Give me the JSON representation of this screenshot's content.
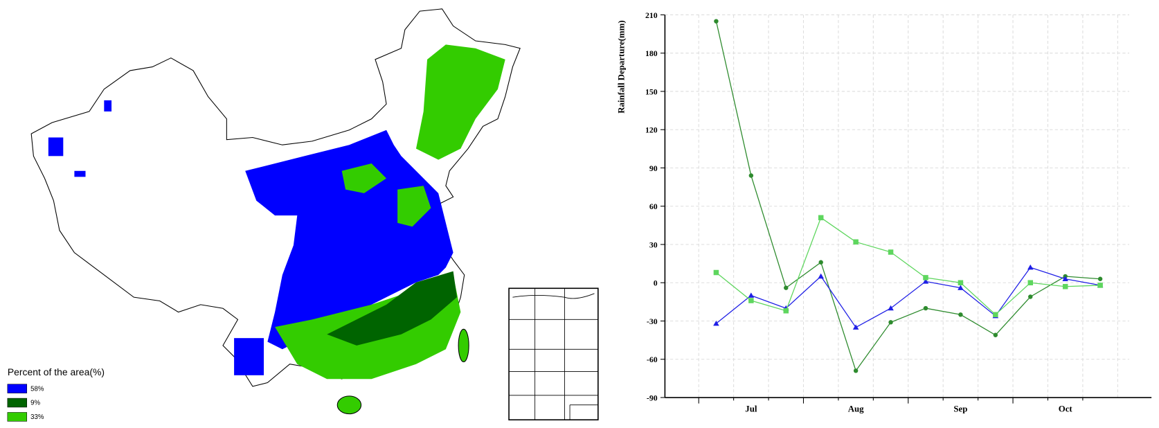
{
  "chart_data": [
    {
      "type": "map",
      "legend_title": "Percent of the area(%)",
      "values": [
        58,
        9,
        33
      ],
      "value_labels": [
        "58%",
        "9%",
        "33%"
      ],
      "colors": [
        "#0000ff",
        "#006400",
        "#33cc00"
      ]
    },
    {
      "type": "line",
      "y_label": "Rainfall Departure(mm)",
      "categories": [
        null,
        "Jul",
        null,
        null,
        "Aug",
        null,
        null,
        "Sep",
        null,
        null,
        "Oct",
        null
      ],
      "ylim": [
        -90,
        210
      ],
      "yticks": [
        -90,
        -60,
        -30,
        0,
        30,
        60,
        90,
        120,
        150,
        180,
        210
      ],
      "grid": true,
      "series": [
        {
          "color": "#2e8b2e",
          "marker": "circle",
          "values": [
            205,
            84,
            -4,
            16,
            -69,
            -31,
            -20,
            -25,
            -41,
            -11,
            5,
            3
          ]
        },
        {
          "color": "#1f1fe6",
          "marker": "triangle",
          "values": [
            -32,
            -10,
            -20,
            5,
            -35,
            -20,
            1,
            -4,
            -26,
            12,
            3,
            -2
          ]
        },
        {
          "color": "#5ed65e",
          "marker": "square",
          "values": [
            8,
            -14,
            -22,
            51,
            32,
            24,
            4,
            0,
            -25,
            0,
            -3,
            -2
          ]
        }
      ]
    }
  ]
}
